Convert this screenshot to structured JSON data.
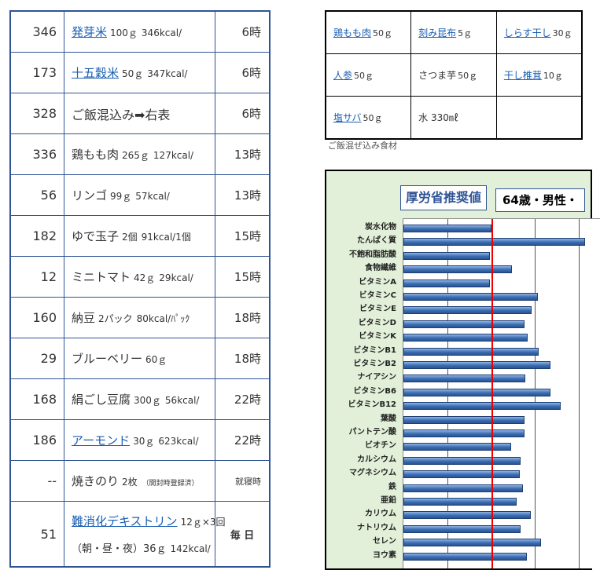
{
  "meal_rows": [
    {
      "kcal": "346",
      "name": "発芽米",
      "link": true,
      "amount": "100ｇ",
      "kcal_info": "346kcal/",
      "time": "6時"
    },
    {
      "kcal": "173",
      "name": "十五穀米",
      "link": true,
      "amount": "50ｇ",
      "kcal_info": "347kcal/",
      "time": "6時"
    },
    {
      "kcal": "328",
      "name": "ご飯混込み➡右表",
      "link": false,
      "amount": "",
      "kcal_info": "",
      "time": "6時"
    },
    {
      "kcal": "336",
      "name": "鶏もも肉",
      "link": false,
      "amount": "265ｇ",
      "kcal_info": "127kcal/",
      "time": "13時"
    },
    {
      "kcal": "56",
      "name": "リンゴ",
      "link": false,
      "amount": "99ｇ",
      "kcal_info": "57kcal/",
      "time": "13時"
    },
    {
      "kcal": "182",
      "name": "ゆで玉子",
      "link": false,
      "amount": "2個",
      "kcal_info": "91kcal/1個",
      "time": "15時"
    },
    {
      "kcal": "12",
      "name": "ミニトマト",
      "link": false,
      "amount": "42ｇ",
      "kcal_info": "29kcal/",
      "time": "15時"
    },
    {
      "kcal": "160",
      "name": "納豆",
      "link": false,
      "amount": "2パック",
      "kcal_info": "80kcal/ﾊﾟｯｸ",
      "time": "18時"
    },
    {
      "kcal": "29",
      "name": "ブルーベリー",
      "link": false,
      "amount": "60ｇ",
      "kcal_info": "",
      "time": "18時"
    },
    {
      "kcal": "168",
      "name": "絹ごし豆腐",
      "link": false,
      "amount": "300ｇ",
      "kcal_info": "56kcal/",
      "time": "22時"
    },
    {
      "kcal": "186",
      "name": "アーモンド",
      "link": true,
      "amount": "30ｇ",
      "kcal_info": "623kcal/",
      "time": "22時"
    },
    {
      "kcal": "--",
      "name": "焼きのり",
      "link": false,
      "amount": "2枚",
      "kcal_info": "（開封時登録済）",
      "time": "就寝時"
    }
  ],
  "dextrin_row": {
    "kcal": "51",
    "name": "難消化デキストリン",
    "amount": "12ｇ×3回",
    "line2": "（朝・昼・夜）36ｇ",
    "kcal_info": "142kcal/",
    "time": "毎 日"
  },
  "rice_table": [
    [
      {
        "name": "鶏もも肉",
        "amount": "50ｇ",
        "link": true
      },
      {
        "name": "刻み昆布",
        "amount": "5ｇ",
        "link": true
      },
      {
        "name": "しらす干し",
        "amount": "30ｇ",
        "link": true
      }
    ],
    [
      {
        "name": "人参",
        "amount": "50ｇ",
        "link": true
      },
      {
        "name": "さつま芋",
        "amount": "50ｇ",
        "link": false
      },
      {
        "name": "干し椎茸",
        "amount": "10ｇ",
        "link": true
      }
    ],
    [
      {
        "name": "塩サバ",
        "amount": "50ｇ",
        "link": true
      },
      {
        "name": "水 330㎖",
        "amount": "",
        "link": false
      },
      {
        "name": "",
        "amount": "",
        "link": false
      }
    ]
  ],
  "rice_caption": "ご飯混ぜ込み食材",
  "chart_data": {
    "type": "bar",
    "orientation": "horizontal",
    "title": "厚労省推奨値",
    "subtitle": "64歳・男性・",
    "categories": [
      "炭水化物",
      "たんぱく質",
      "不飽和脂肪酸",
      "食物繊維",
      "ビタミンA",
      "ビタミンC",
      "ビタミンE",
      "ビタミンD",
      "ビタミンK",
      "ビタミンB1",
      "ビタミンB2",
      "ナイアシン",
      "ビタミンB6",
      "ビタミンB12",
      "葉酸",
      "パントテン酸",
      "ビオチン",
      "カルシウム",
      "マグネシウム",
      "鉄",
      "亜鉛",
      "カリウム",
      "ナトリウム",
      "セレン",
      "ヨウ素"
    ],
    "values": [
      100,
      207,
      99,
      124,
      99,
      153,
      146,
      138,
      142,
      154,
      168,
      139,
      168,
      179,
      138,
      138,
      123,
      134,
      133,
      136,
      129,
      145,
      134,
      157,
      141
    ],
    "reference_line": 100,
    "grid": true,
    "colors": {
      "bar": "#3b6db3",
      "reference": "#e00000",
      "background": "#e2f0d9"
    }
  }
}
